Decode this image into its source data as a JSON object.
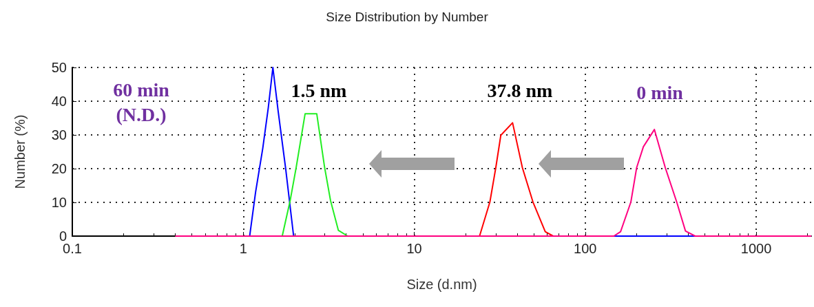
{
  "chart_data": {
    "type": "line",
    "title": "Size Distribution by Number",
    "xlabel": "Size (d.nm)",
    "ylabel": "Number (%)",
    "log": "x",
    "xlim": [
      0.1,
      2100
    ],
    "xticks": [
      0.1,
      1,
      10,
      100,
      1000
    ],
    "ylim": [
      0,
      50
    ],
    "yticks": [
      0,
      10,
      20,
      30,
      40,
      50
    ],
    "grid": true,
    "marker": "none",
    "line_style": "solid",
    "series": [
      {
        "color": "#0000ff",
        "x": [
          1.09,
          1.18,
          1.3,
          1.4,
          1.49,
          1.6,
          1.77,
          1.97,
          147,
          440
        ],
        "values": [
          0,
          13,
          26,
          38,
          50,
          37,
          20,
          0,
          0,
          0
        ]
      },
      {
        "color": "#22ee22",
        "x": [
          1.69,
          1.88,
          2.04,
          2.3,
          2.69,
          2.99,
          3.24,
          3.6,
          4.08
        ],
        "values": [
          0,
          10.5,
          20.4,
          36.3,
          36.3,
          20.4,
          10.5,
          1.7,
          0
        ]
      },
      {
        "color": "#ff0000",
        "x": [
          24.1,
          27.7,
          30,
          32.1,
          37.6,
          42.9,
          49.5,
          58.4,
          65
        ],
        "values": [
          0,
          10.1,
          20.3,
          29.9,
          33.6,
          20.3,
          10.1,
          1.3,
          0
        ]
      },
      {
        "color": "#ff0080",
        "x": [
          0.4,
          147,
          161,
          185,
          200,
          219,
          254,
          294,
          343,
          386,
          440,
          2100
        ],
        "values": [
          0,
          0,
          1.3,
          10.1,
          20.3,
          26.5,
          31.6,
          20.3,
          10.1,
          1.5,
          0,
          0
        ]
      }
    ],
    "annotations": [
      "60 min\n(N.D.)",
      "1.5 nm",
      "37.8 nm",
      "0 min"
    ]
  }
}
